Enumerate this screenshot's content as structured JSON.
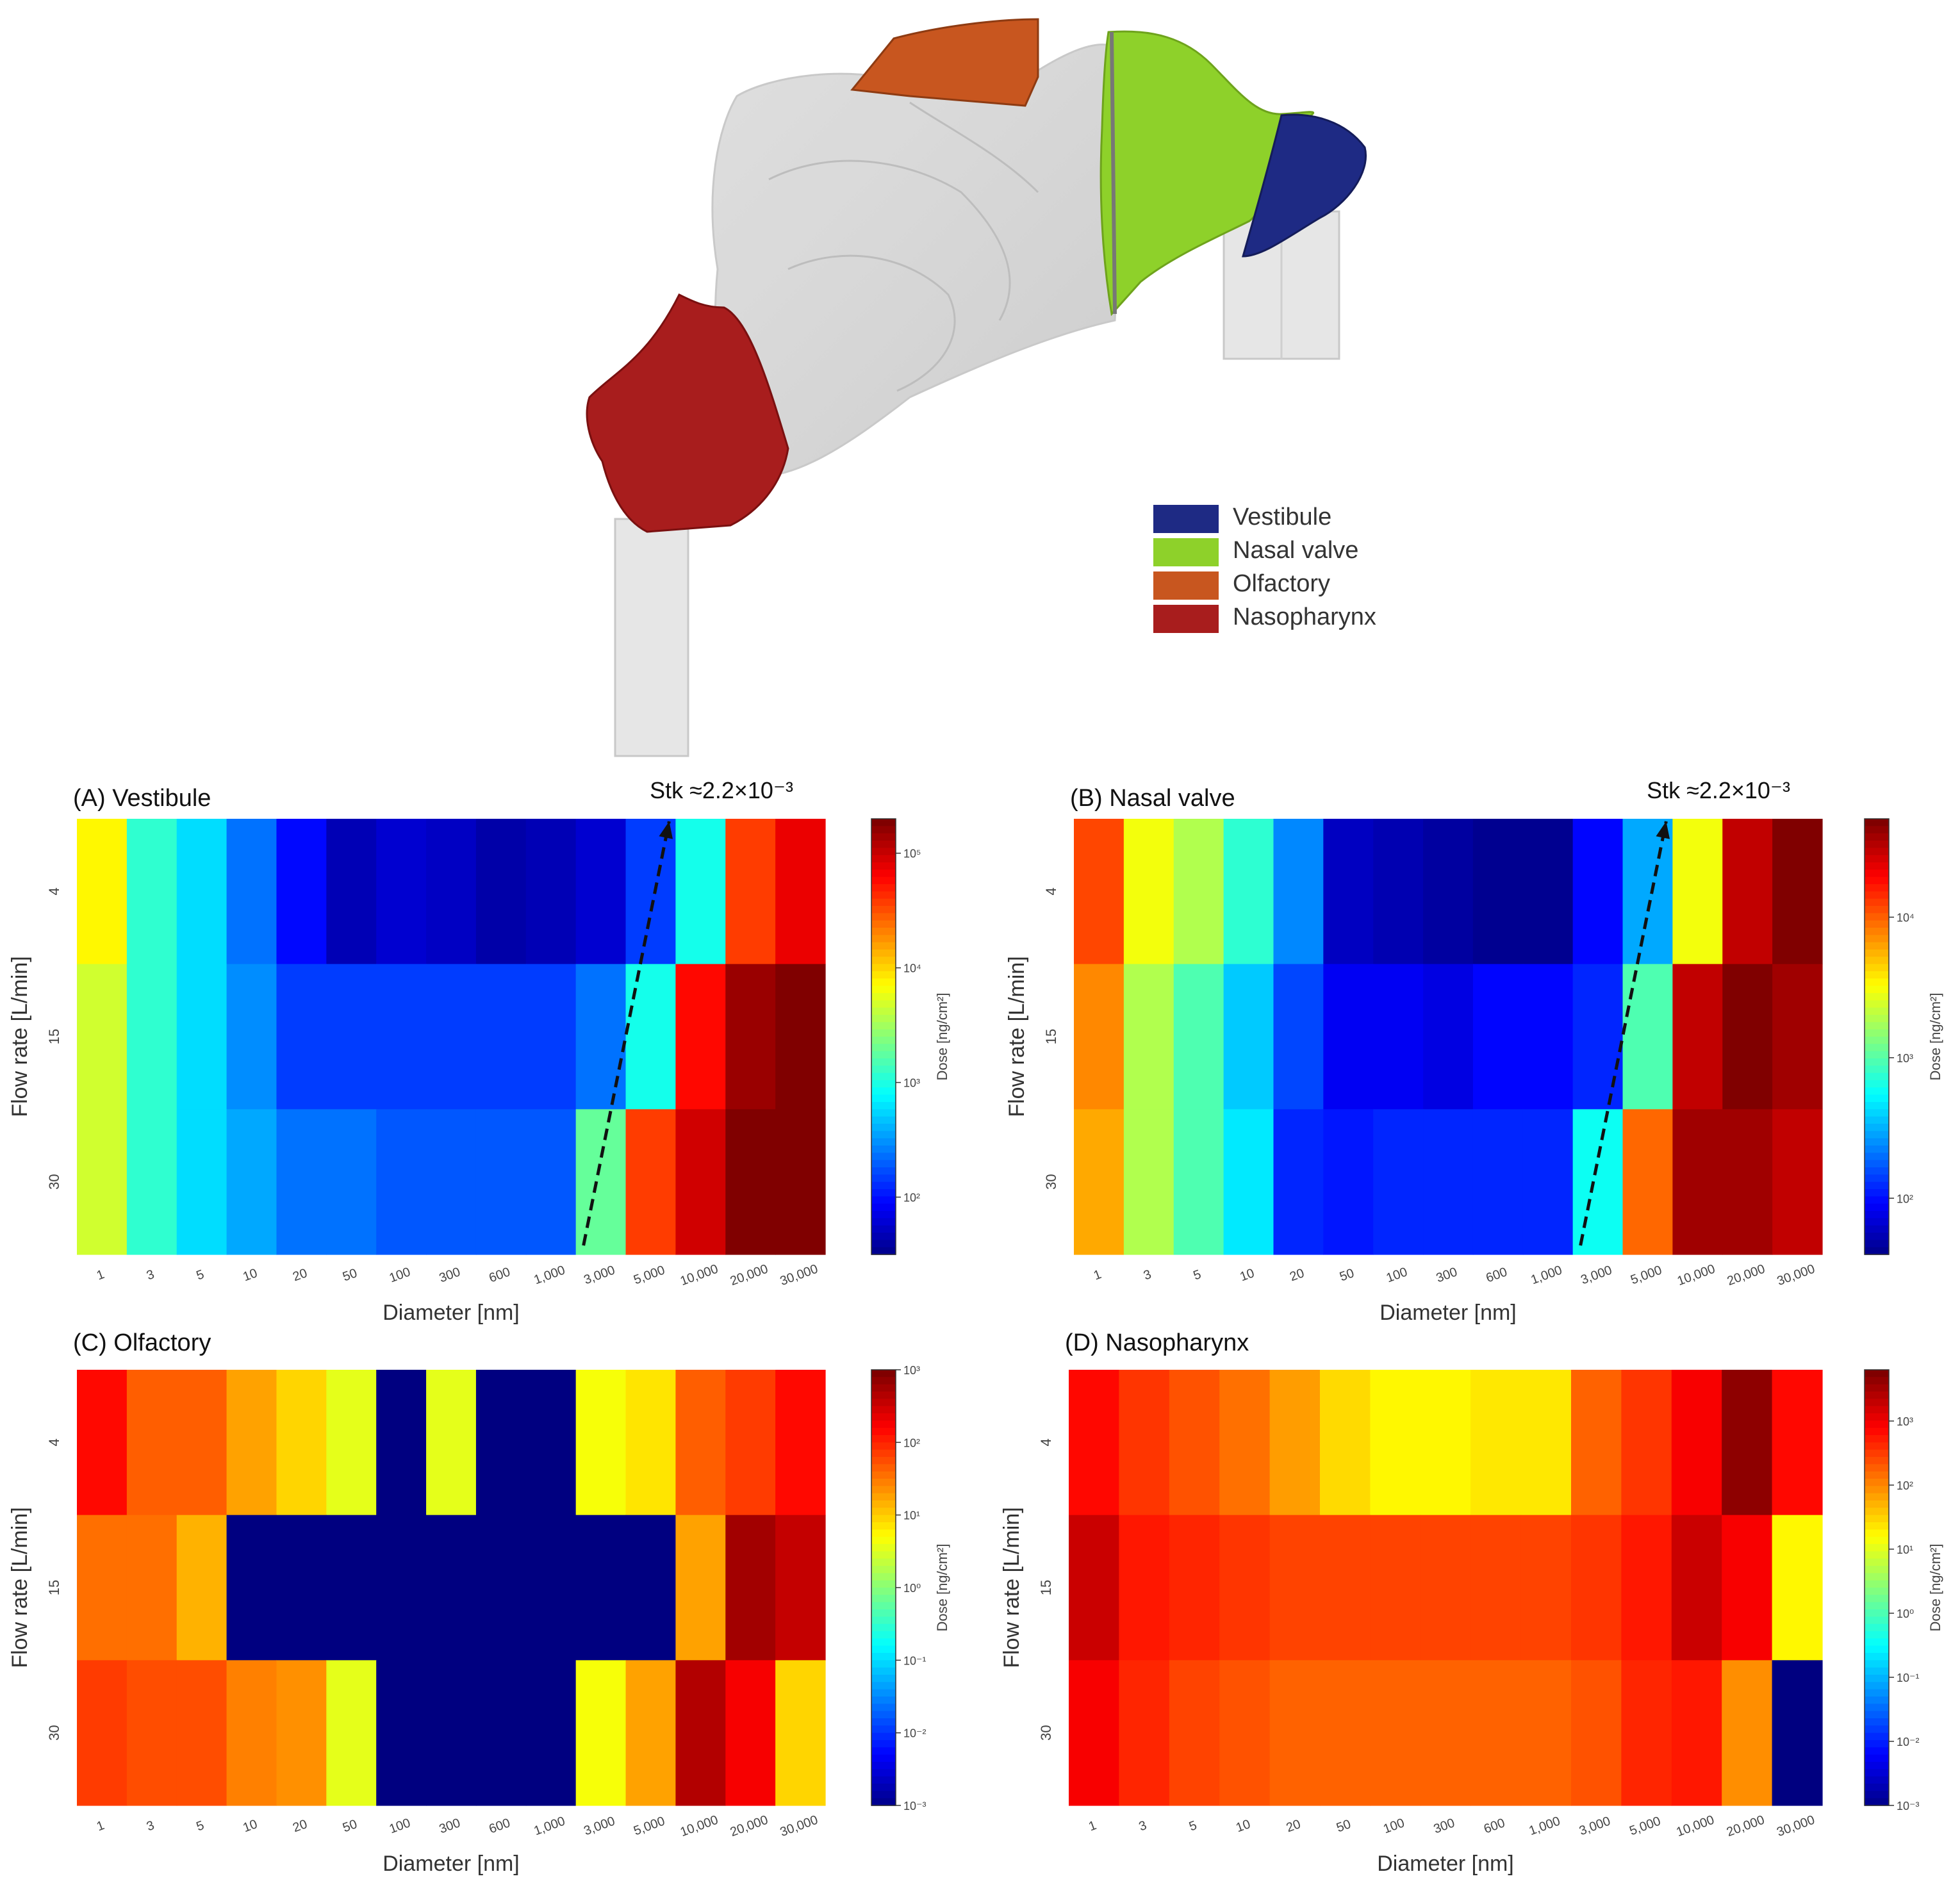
{
  "illustration": {
    "legend": [
      {
        "label": "Vestibule",
        "color": "#1e2a84"
      },
      {
        "label": "Nasal valve",
        "color": "#8ed12a"
      },
      {
        "label": "Olfactory",
        "color": "#c8561f"
      },
      {
        "label": "Nasopharynx",
        "color": "#a81d1d"
      }
    ]
  },
  "chart_data": [
    {
      "type": "heatmap",
      "title": "(A) Vestibule",
      "annotation": "Stk ≈2.2×10⁻³",
      "xlabel": "Diameter [nm]",
      "ylabel": "Flow rate [L/min]",
      "colorbar_label": "Dose [ng/cm²]",
      "colorscale": "jet",
      "log_color_scale": true,
      "clim_log10": [
        1.5,
        5.3
      ],
      "colorbar_ticks": [
        "10²",
        "10³",
        "10⁴",
        "10⁵"
      ],
      "x": [
        "1",
        "3",
        "5",
        "10",
        "20",
        "50",
        "100",
        "300",
        "600",
        "1,000",
        "3,000",
        "5,000",
        "10,000",
        "20,000",
        "30,000"
      ],
      "y": [
        "4",
        "15",
        "30"
      ],
      "z_log10": [
        [
          3.9,
          3.1,
          2.8,
          2.4,
          2.0,
          1.7,
          1.8,
          1.75,
          1.65,
          1.7,
          1.8,
          2.2,
          3.0,
          4.6,
          4.9
        ],
        [
          3.7,
          3.1,
          2.8,
          2.5,
          2.2,
          2.2,
          2.2,
          2.2,
          2.2,
          2.2,
          2.4,
          3.0,
          4.8,
          5.2,
          5.4
        ],
        [
          3.7,
          3.1,
          2.8,
          2.6,
          2.4,
          2.4,
          2.3,
          2.3,
          2.3,
          2.3,
          3.3,
          4.6,
          5.0,
          5.4,
          5.5
        ]
      ],
      "arrow": {
        "from": {
          "x": "3,000",
          "y": "30"
        },
        "to": {
          "x": "10,000",
          "y": "4"
        }
      }
    },
    {
      "type": "heatmap",
      "title": "(B) Nasal valve",
      "annotation": "Stk ≈2.2×10⁻³",
      "xlabel": "Diameter [nm]",
      "ylabel": "Flow rate [L/min]",
      "colorbar_label": "Dose [ng/cm²]",
      "colorscale": "jet",
      "log_color_scale": true,
      "clim_log10": [
        1.6,
        4.7
      ],
      "colorbar_ticks": [
        "10²",
        "10³",
        "10⁴"
      ],
      "x": [
        "1",
        "3",
        "5",
        "10",
        "20",
        "50",
        "100",
        "300",
        "600",
        "1,000",
        "3,000",
        "5,000",
        "10,000",
        "20,000",
        "30,000"
      ],
      "y": [
        "4",
        "15",
        "30"
      ],
      "z_log10": [
        [
          4.1,
          3.5,
          3.3,
          2.9,
          2.4,
          1.8,
          1.75,
          1.7,
          1.65,
          1.65,
          2.0,
          2.5,
          3.5,
          4.5,
          4.8
        ],
        [
          3.9,
          3.3,
          3.0,
          2.6,
          2.2,
          1.95,
          1.95,
          1.9,
          2.0,
          2.0,
          2.1,
          3.0,
          4.5,
          4.7,
          4.6
        ],
        [
          3.8,
          3.3,
          3.0,
          2.7,
          2.1,
          2.05,
          2.1,
          2.1,
          2.1,
          2.1,
          2.8,
          4.0,
          4.6,
          4.6,
          4.5
        ]
      ],
      "arrow": {
        "from": {
          "x": "3,000",
          "y": "30"
        },
        "to": {
          "x": "10,000",
          "y": "4"
        }
      }
    },
    {
      "type": "heatmap",
      "title": "(C) Olfactory",
      "xlabel": "Diameter [nm]",
      "ylabel": "Flow rate [L/min]",
      "colorbar_label": "Dose [ng/cm²]",
      "colorscale": "jet",
      "log_color_scale": true,
      "clim_log10": [
        -3,
        3
      ],
      "colorbar_ticks": [
        "10⁻³",
        "10⁻²",
        "10⁻¹",
        "10⁰",
        "10¹",
        "10²",
        "10³"
      ],
      "x": [
        "1",
        "3",
        "5",
        "10",
        "20",
        "50",
        "100",
        "300",
        "600",
        "1,000",
        "3,000",
        "5,000",
        "10,000",
        "20,000",
        "30,000"
      ],
      "y": [
        "4",
        "15",
        "30"
      ],
      "z_log10": [
        [
          2.2,
          1.7,
          1.7,
          1.3,
          1.0,
          0.6,
          -3,
          0.6,
          -3,
          -3,
          0.7,
          0.9,
          1.7,
          1.9,
          2.2
        ],
        [
          1.6,
          1.6,
          1.2,
          -3,
          -3,
          -3,
          -3,
          -3,
          -3,
          -3,
          -3,
          -3,
          1.3,
          2.8,
          2.6
        ],
        [
          1.9,
          1.8,
          1.8,
          1.5,
          1.4,
          0.6,
          -3,
          -3,
          -3,
          -3,
          0.7,
          1.3,
          2.7,
          2.3,
          1.0
        ]
      ]
    },
    {
      "type": "heatmap",
      "title": "(D) Nasopharynx",
      "xlabel": "Diameter [nm]",
      "ylabel": "Flow rate [L/min]",
      "colorbar_label": "Dose [ng/cm²]",
      "colorscale": "jet",
      "log_color_scale": true,
      "clim_log10": [
        -3,
        3.8
      ],
      "colorbar_ticks": [
        "10⁻³",
        "10⁻²",
        "10⁻¹",
        "10⁰",
        "10¹",
        "10²",
        "10³"
      ],
      "x": [
        "1",
        "3",
        "5",
        "10",
        "20",
        "50",
        "100",
        "300",
        "600",
        "1,000",
        "3,000",
        "5,000",
        "10,000",
        "20,000",
        "30,000"
      ],
      "y": [
        "4",
        "15",
        "30"
      ],
      "z_log10": [
        [
          2.9,
          2.6,
          2.4,
          2.2,
          1.9,
          1.5,
          1.3,
          1.3,
          1.4,
          1.4,
          2.3,
          2.6,
          3.0,
          3.7,
          2.9
        ],
        [
          3.3,
          2.8,
          2.7,
          2.6,
          2.5,
          2.5,
          2.5,
          2.5,
          2.5,
          2.5,
          2.6,
          2.8,
          3.3,
          3.0,
          1.3
        ],
        [
          3.0,
          2.7,
          2.5,
          2.4,
          2.3,
          2.3,
          2.3,
          2.3,
          2.3,
          2.3,
          2.4,
          2.7,
          2.8,
          2.0,
          -3
        ]
      ]
    }
  ]
}
